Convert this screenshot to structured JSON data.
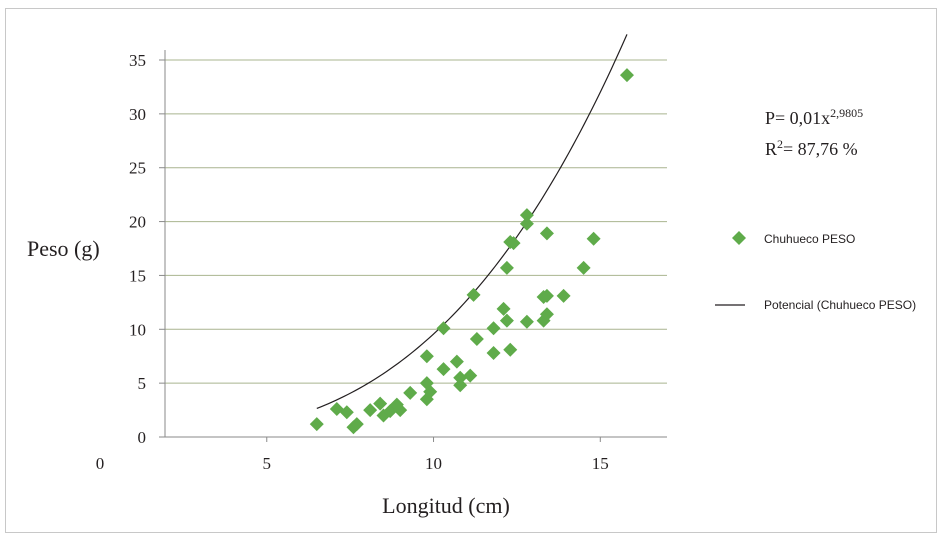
{
  "chart_data": {
    "type": "scatter",
    "xlabel": "Longitud (cm)",
    "ylabel": "Peso (g)",
    "xlim": [
      0,
      17
    ],
    "ylim": [
      0,
      35
    ],
    "x_ticks": [
      "0",
      "5",
      "10",
      "15"
    ],
    "y_ticks": [
      "0",
      "5",
      "10",
      "15",
      "20",
      "25",
      "30",
      "35"
    ],
    "grid": "horizontal",
    "legend_position": "right",
    "series": [
      {
        "name": "Chuhueco PESO",
        "color": "#5fab4a",
        "marker": "diamond",
        "points": [
          [
            6.5,
            1.2
          ],
          [
            7.1,
            2.6
          ],
          [
            7.4,
            2.3
          ],
          [
            7.6,
            0.9
          ],
          [
            7.7,
            1.2
          ],
          [
            8.1,
            2.5
          ],
          [
            8.4,
            3.1
          ],
          [
            8.5,
            2.0
          ],
          [
            8.7,
            2.4
          ],
          [
            8.9,
            3.0
          ],
          [
            9.0,
            2.5
          ],
          [
            9.3,
            4.1
          ],
          [
            9.8,
            7.5
          ],
          [
            9.8,
            5.0
          ],
          [
            9.8,
            3.5
          ],
          [
            9.9,
            4.2
          ],
          [
            10.3,
            10.1
          ],
          [
            10.3,
            6.3
          ],
          [
            10.7,
            7.0
          ],
          [
            10.8,
            5.5
          ],
          [
            10.8,
            4.8
          ],
          [
            11.1,
            5.7
          ],
          [
            11.2,
            13.2
          ],
          [
            11.3,
            9.1
          ],
          [
            11.8,
            10.1
          ],
          [
            11.8,
            7.8
          ],
          [
            12.1,
            11.9
          ],
          [
            12.2,
            10.8
          ],
          [
            12.2,
            15.7
          ],
          [
            12.3,
            18.1
          ],
          [
            12.4,
            18.0
          ],
          [
            12.3,
            8.1
          ],
          [
            12.8,
            20.6
          ],
          [
            12.8,
            19.8
          ],
          [
            12.8,
            10.7
          ],
          [
            13.3,
            13.0
          ],
          [
            13.4,
            13.1
          ],
          [
            13.3,
            10.8
          ],
          [
            13.4,
            11.4
          ],
          [
            13.4,
            18.9
          ],
          [
            13.9,
            13.1
          ],
          [
            14.5,
            15.7
          ],
          [
            14.8,
            18.4
          ],
          [
            15.8,
            33.6
          ]
        ]
      }
    ],
    "trendline": {
      "name": "Potencial (Chuhueco PESO)",
      "type": "power",
      "coefficient": 0.01,
      "exponent": 2.9805,
      "x_range": [
        6.5,
        15.8
      ],
      "color": "#231f20"
    },
    "annotations": {
      "equation_lhs": "P= 0,01x",
      "equation_exp": "2,9805",
      "r2_lhs": "R",
      "r2_exp": "2",
      "r2_rhs": "= 87,76 %"
    }
  }
}
